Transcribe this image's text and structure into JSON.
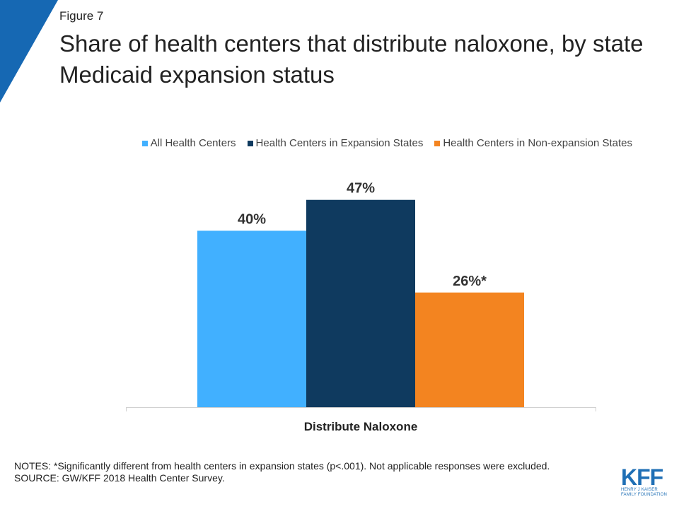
{
  "figure_label": "Figure 7",
  "title": "Share of health centers that distribute naloxone, by state Medicaid expansion status",
  "colors": {
    "brand_blue": "#1f6fb5",
    "corner": "#1668b3"
  },
  "chart_data": {
    "type": "bar",
    "categories": [
      "Distribute Naloxone"
    ],
    "series": [
      {
        "name": "All Health Centers",
        "values": [
          40
        ],
        "label": "40%",
        "color": "#41b0ff"
      },
      {
        "name": "Health Centers in Expansion States",
        "values": [
          47
        ],
        "label": "47%",
        "color": "#0f3a5f"
      },
      {
        "name": "Health Centers in Non-expansion States",
        "values": [
          26
        ],
        "label": "26%*",
        "color": "#f38420"
      }
    ],
    "ylim": [
      0,
      50
    ],
    "legend_position": "top-right",
    "grid": false
  },
  "notes": {
    "notes_text": "NOTES: *Significantly different from health centers in expansion states (p<.001). Not applicable responses were excluded.",
    "source_text": "SOURCE: GW/KFF 2018 Health Center Survey."
  },
  "logo": {
    "letters": "KFF",
    "line1": "HENRY J KAISER",
    "line2": "FAMILY FOUNDATION"
  }
}
